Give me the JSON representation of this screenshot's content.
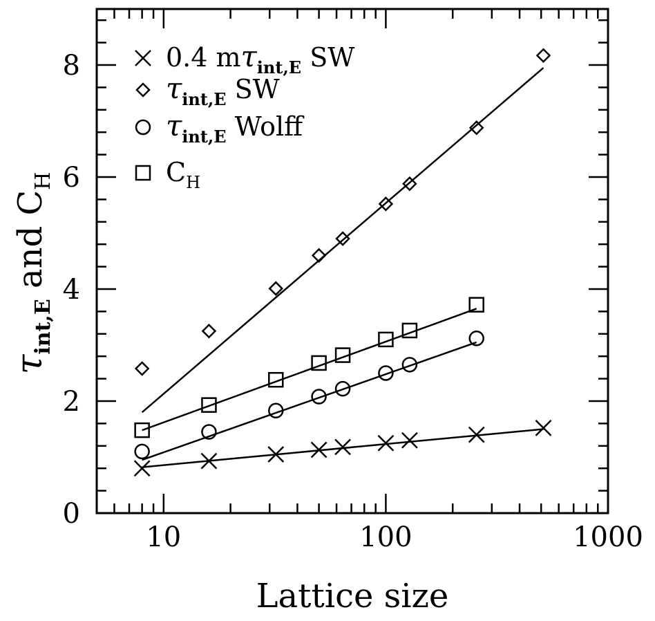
{
  "chart_data": {
    "type": "scatter",
    "title": "",
    "xlabel": "Lattice size",
    "ylabel_parts": {
      "tau": "τ",
      "sub": "int,E",
      "and": " and C",
      "sub2": "H"
    },
    "xscale": "log",
    "xlim": [
      5,
      1000
    ],
    "ylim": [
      0,
      9
    ],
    "x_ticks": [
      10,
      100,
      1000
    ],
    "x_tick_labels": [
      "10",
      "100",
      "1000"
    ],
    "y_ticks": [
      0,
      2,
      4,
      6,
      8
    ],
    "y_tick_labels": [
      "0",
      "2",
      "4",
      "6",
      "8"
    ],
    "legend_position": "top-left",
    "series": [
      {
        "key": "x-sw",
        "legend": {
          "pre": "0.4 m",
          "tau": "τ",
          "sub": "int,E",
          "post": " SW"
        },
        "marker": "cross",
        "x": [
          8,
          16,
          32,
          50,
          64,
          100,
          128,
          256,
          512
        ],
        "y": [
          0.8,
          0.93,
          1.05,
          1.13,
          1.18,
          1.25,
          1.3,
          1.4,
          1.52
        ],
        "fit": {
          "x": [
            8,
            512
          ],
          "y": [
            0.82,
            1.5
          ]
        }
      },
      {
        "key": "diamond-sw",
        "legend": {
          "pre": "",
          "tau": "τ",
          "sub": "int,E",
          "post": " SW"
        },
        "marker": "diamond",
        "x": [
          8,
          16,
          32,
          50,
          64,
          100,
          128,
          256,
          512
        ],
        "y": [
          2.58,
          3.25,
          4.01,
          4.6,
          4.9,
          5.52,
          5.88,
          6.88,
          8.17
        ],
        "fit": {
          "x": [
            8,
            512
          ],
          "y": [
            1.8,
            7.95
          ]
        }
      },
      {
        "key": "circle-wolff",
        "legend": {
          "pre": "",
          "tau": "τ",
          "sub": "int,E",
          "post": " Wolff"
        },
        "marker": "circle",
        "x": [
          8,
          16,
          32,
          50,
          64,
          100,
          128,
          256
        ],
        "y": [
          1.1,
          1.45,
          1.83,
          2.08,
          2.22,
          2.5,
          2.65,
          3.12
        ],
        "fit": {
          "x": [
            8,
            256
          ],
          "y": [
            0.95,
            3.05
          ]
        }
      },
      {
        "key": "square-ch",
        "legend": {
          "pre": "",
          "tau": "",
          "sub": "",
          "post": "C",
          "sub_post": "H"
        },
        "marker": "square",
        "x": [
          8,
          16,
          32,
          50,
          64,
          100,
          128,
          256
        ],
        "y": [
          1.48,
          1.93,
          2.38,
          2.68,
          2.82,
          3.1,
          3.26,
          3.72
        ],
        "fit": {
          "x": [
            8,
            256
          ],
          "y": [
            1.48,
            3.65
          ]
        }
      }
    ]
  }
}
